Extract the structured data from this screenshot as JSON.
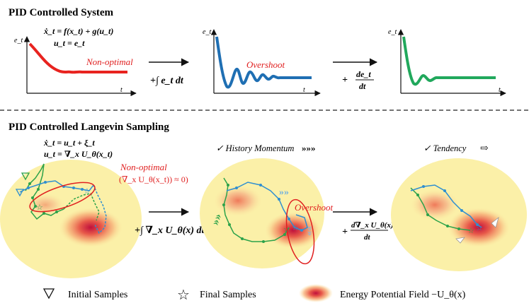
{
  "top_section": {
    "title": "PID Controlled System",
    "eq_line1": "ẋ_t = f(x_t) + g(u_t)",
    "eq_line2": "u_t = e_t",
    "y_label": "e_t",
    "x_label": "t",
    "panels": [
      {
        "note": "Non-optimal",
        "color": "#e8231f"
      },
      {
        "note": "Overshoot",
        "color": "#1f6fb3"
      },
      {
        "note": "",
        "color": "#21a85c"
      }
    ],
    "arrow1_label": "+∫ e_t dt",
    "arrow2_label_plus": "+",
    "arrow2_num": "de_t",
    "arrow2_den": "dt"
  },
  "bottom_section": {
    "title": "PID Controlled Langevin Sampling",
    "eq_line1": "ẋ_t = u_t + ξ_t",
    "eq_line2": "u_t = ∇_x U_θ(x_t)",
    "note1": "Non-optimal",
    "note2": "(∇_x U_θ(x_t)) ≈ 0)",
    "history_label": "✓ History Momentum",
    "history_icon": "»»»",
    "tendency_label": "✓ Tendency",
    "overshoot_label": "Overshoot",
    "arrow1_label": "+∫ ∇_x U_θ(x) dt",
    "arrow2_plus": "+",
    "arrow2_num": "d∇_x U_θ(x)",
    "arrow2_den": "dt"
  },
  "legend": {
    "initial": "Initial Samples",
    "final": "Final Samples",
    "field": "Energy Potential Field −U_θ(x)"
  },
  "colors": {
    "green": "#2ca24a",
    "blue": "#2f8fd0",
    "red": "#e02020",
    "yellow_blob": "#fbf0a8"
  }
}
